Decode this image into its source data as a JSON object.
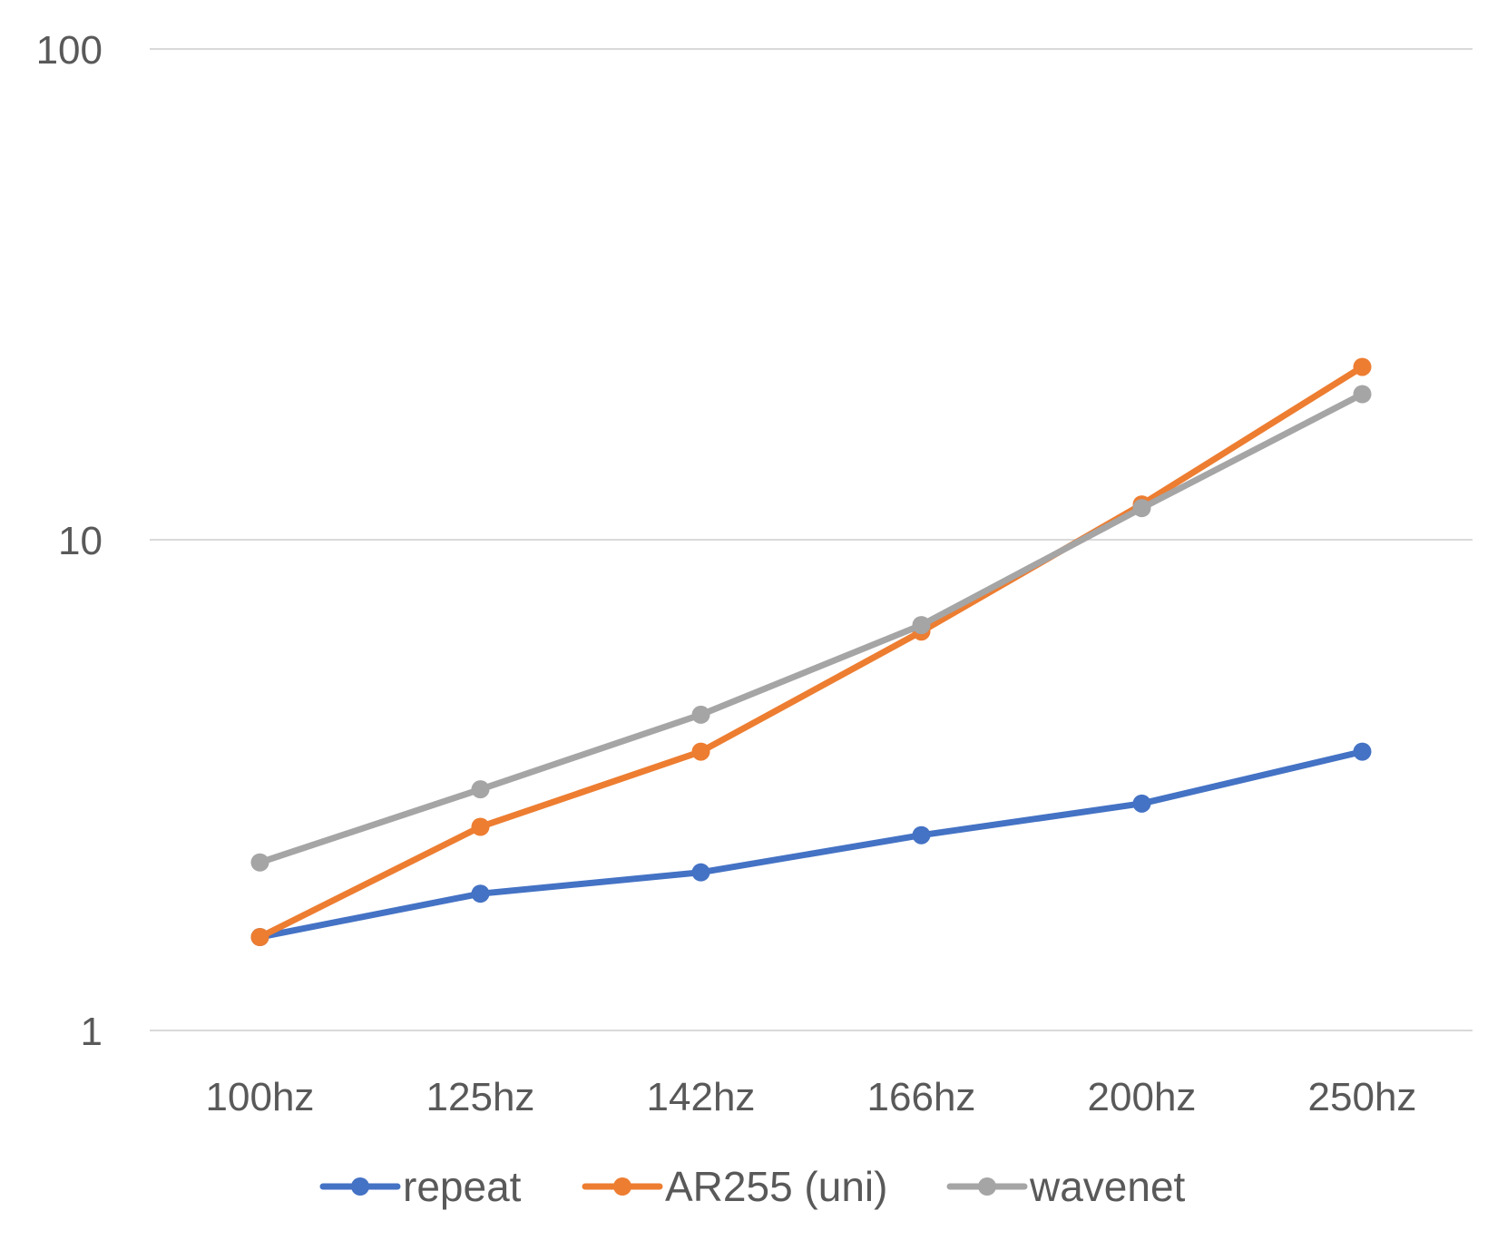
{
  "chart_data": {
    "type": "line",
    "title": "",
    "xlabel": "",
    "ylabel": "",
    "y_scale": "log",
    "ylim": [
      1,
      100
    ],
    "y_ticks": [
      "1",
      "10",
      "100"
    ],
    "grid": true,
    "legend_position": "bottom",
    "categories": [
      "100hz",
      "125hz",
      "142hz",
      "166hz",
      "200hz",
      "250hz"
    ],
    "series": [
      {
        "name": "repeat",
        "color": "#4472C4",
        "values": [
          1.55,
          1.9,
          2.1,
          2.5,
          2.9,
          3.7
        ]
      },
      {
        "name": "AR255 (uni)",
        "color": "#ED7D31",
        "values": [
          1.55,
          2.6,
          3.7,
          6.5,
          11.8,
          22.5
        ]
      },
      {
        "name": "wavenet",
        "color": "#A5A5A5",
        "values": [
          2.2,
          3.1,
          4.4,
          6.7,
          11.6,
          19.8
        ]
      }
    ]
  }
}
